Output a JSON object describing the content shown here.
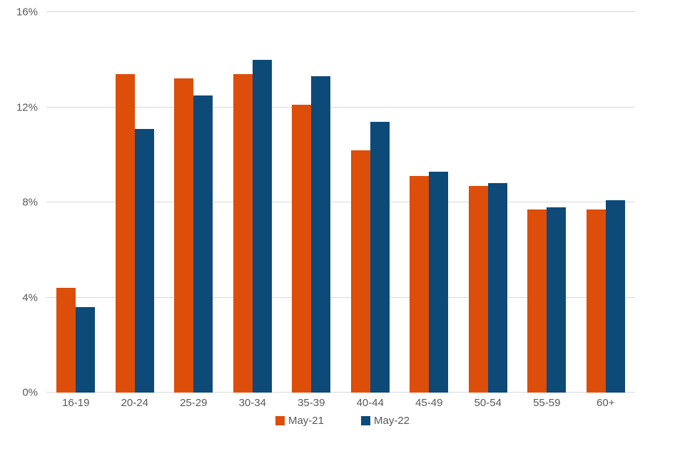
{
  "chart_data": {
    "type": "bar",
    "title": "",
    "xlabel": "",
    "ylabel": "",
    "categories": [
      "16-19",
      "20-24",
      "25-29",
      "30-34",
      "35-39",
      "40-44",
      "45-49",
      "50-54",
      "55-59",
      "60+"
    ],
    "series": [
      {
        "name": "May-21",
        "color": "#DC4E0A",
        "values": [
          4.4,
          13.4,
          13.2,
          13.4,
          12.1,
          10.2,
          9.1,
          8.7,
          7.7,
          7.7
        ]
      },
      {
        "name": "May-22",
        "color": "#0D4A78",
        "values": [
          3.6,
          11.1,
          12.5,
          14.0,
          13.3,
          11.4,
          9.3,
          8.8,
          7.8,
          8.1
        ]
      }
    ],
    "ylim": [
      0,
      16
    ],
    "ytick_values": [
      0,
      4,
      8,
      12,
      16
    ],
    "yticks": [
      "0%",
      "4%",
      "8%",
      "12%",
      "16%"
    ],
    "grid": true,
    "legend_position": "bottom-center"
  },
  "colors": {
    "background": "#FFFFFF",
    "gridline": "#D9D9D9",
    "axis_text": "#595959",
    "series_may21": "#DC4E0A",
    "series_may22": "#0D4A78"
  }
}
